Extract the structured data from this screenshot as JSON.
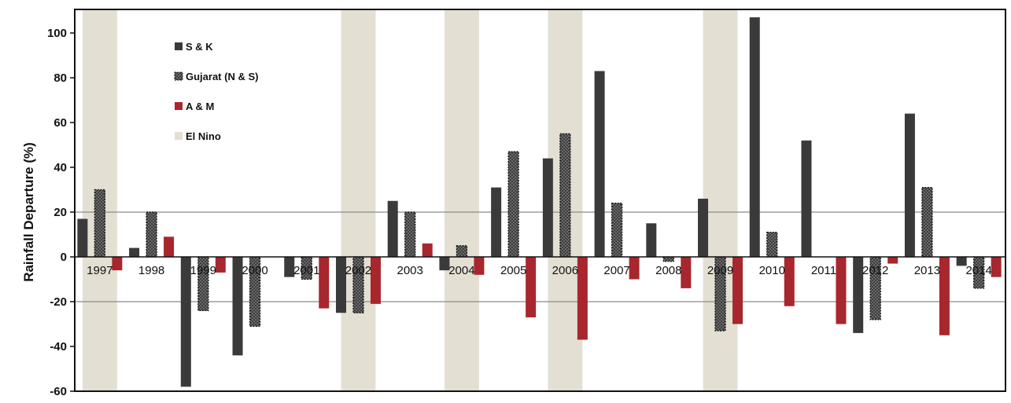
{
  "chart_data": {
    "type": "bar",
    "ylabel": "Rainfall Departure (%)",
    "ylim": [
      -60,
      110
    ],
    "yticks": [
      100,
      80,
      60,
      40,
      20,
      0,
      -20,
      -40,
      -60
    ],
    "reference_lines": [
      20,
      -20
    ],
    "categories": [
      "1997",
      "1998",
      "1999",
      "2000",
      "2001",
      "2002",
      "2003",
      "2004",
      "2005",
      "2006",
      "2007",
      "2008",
      "2009",
      "2010",
      "2011",
      "2012",
      "2013",
      "2014"
    ],
    "series": [
      {
        "name": "S & K",
        "color": "#3a3a3a",
        "style": "solid",
        "values": [
          17,
          4,
          -58,
          -44,
          -9,
          -25,
          25,
          -6,
          31,
          44,
          83,
          15,
          26,
          107,
          52,
          -34,
          64,
          -4
        ]
      },
      {
        "name": "Gujarat (N & S)",
        "color": "#555555",
        "style": "dotted",
        "values": [
          30,
          20,
          -24,
          -31,
          -10,
          -25,
          20,
          5,
          47,
          55,
          24,
          -2,
          -33,
          11,
          0,
          -28,
          31,
          -14
        ]
      },
      {
        "name": "A & M",
        "color": "#a8262d",
        "style": "solid",
        "values": [
          -6,
          9,
          -7,
          0,
          -23,
          -21,
          6,
          -8,
          -27,
          -37,
          -10,
          -14,
          -30,
          -22,
          -30,
          -3,
          -35,
          -9
        ]
      }
    ],
    "el_nino": {
      "name": "El Nino",
      "color": "#e3e0d3",
      "years": [
        "1997",
        "2002",
        "2004",
        "2006",
        "2009"
      ]
    },
    "legend_position": "top-left"
  }
}
